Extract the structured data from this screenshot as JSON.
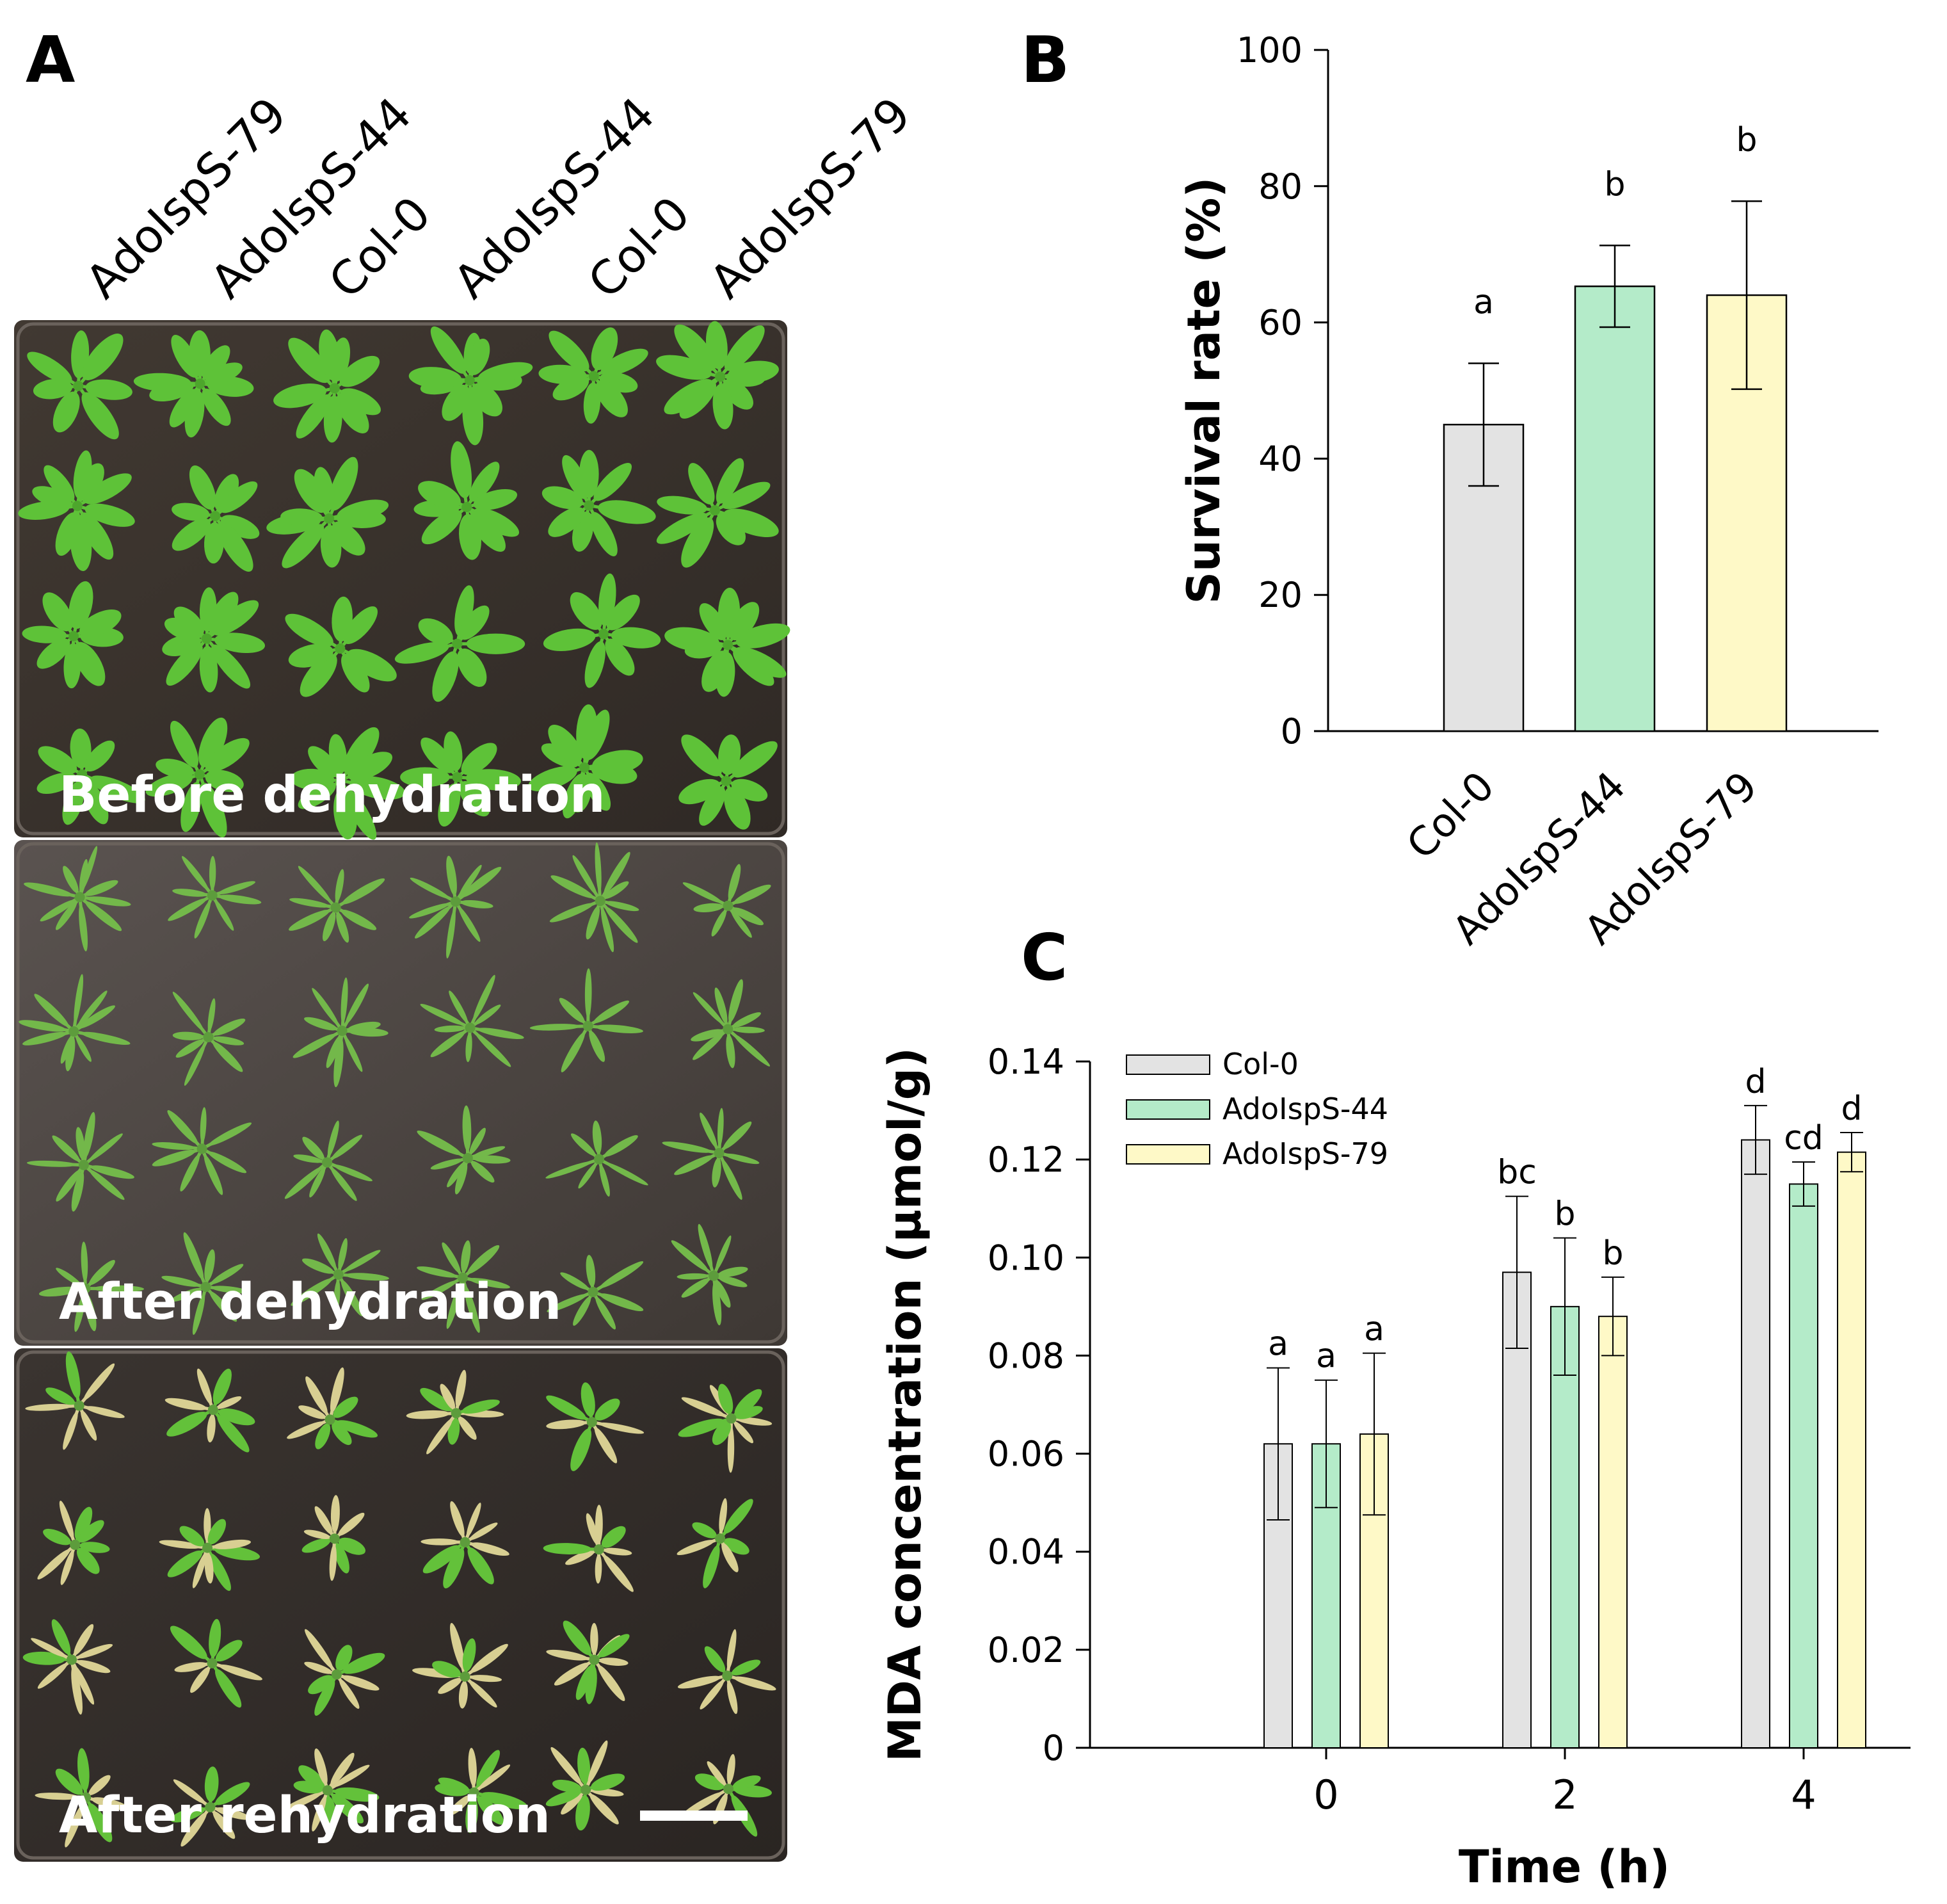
{
  "panel_a": {
    "letter": "A",
    "column_labels": [
      "AdoIspS-79",
      "AdoIspS-44",
      "Col-0",
      "AdoIspS-44",
      "Col-0",
      "AdoIspS-79"
    ],
    "photos": [
      {
        "caption": "Before dehydration",
        "state": "healthy"
      },
      {
        "caption": "After dehydration",
        "state": "wilted"
      },
      {
        "caption": "After rehydration",
        "state": "recovered"
      }
    ],
    "colors": {
      "soil": "#3b332d",
      "healthy_leaf": "#5ec238",
      "wilted_leaf": "#73b84a",
      "dead_leaf": "#d8cf92",
      "recovered_leaf": "#63c13a"
    }
  },
  "panel_b": {
    "letter": "B"
  },
  "panel_c": {
    "letter": "C"
  },
  "chart_data": [
    {
      "type": "bar",
      "ylabel": "Survival rate (%)",
      "xlabel": "",
      "ylim": [
        0,
        100
      ],
      "yticks": [
        "0",
        "20",
        "40",
        "60",
        "80",
        "100"
      ],
      "categories": [
        "Col-0",
        "AdoIspS-44",
        "AdoIspS-79"
      ],
      "values": [
        45,
        65.3,
        64
      ],
      "errors": [
        9,
        6,
        13.8
      ],
      "significance": [
        "a",
        "b",
        "b"
      ],
      "colors": [
        "#e3e3e3",
        "#b4ebc9",
        "#fef9c7"
      ],
      "grid": false,
      "legend": "none"
    },
    {
      "type": "bar",
      "ylabel": "MDA concentration (µmol/g)",
      "xlabel": "Time (h)",
      "ylim": [
        0,
        0.14
      ],
      "yticks": [
        "0",
        "0.02",
        "0.04",
        "0.06",
        "0.08",
        "0.10",
        "0.12",
        "0.14"
      ],
      "categories": [
        "0",
        "2",
        "4"
      ],
      "series": [
        {
          "name": "Col-0",
          "values": [
            0.062,
            0.097,
            0.124
          ],
          "errors": [
            0.0155,
            0.0155,
            0.007
          ],
          "significance": [
            "a",
            "bc",
            "d"
          ],
          "color": "#e3e3e3"
        },
        {
          "name": "AdoIspS-44",
          "values": [
            0.062,
            0.09,
            0.115
          ],
          "errors": [
            0.013,
            0.014,
            0.0045
          ],
          "significance": [
            "a",
            "b",
            "cd"
          ],
          "color": "#b4ebc9"
        },
        {
          "name": "AdoIspS-79",
          "values": [
            0.064,
            0.088,
            0.1215
          ],
          "errors": [
            0.0165,
            0.008,
            0.004
          ],
          "significance": [
            "a",
            "b",
            "d"
          ],
          "color": "#fef9c7"
        }
      ],
      "grid": false,
      "legend": "top-left"
    }
  ]
}
